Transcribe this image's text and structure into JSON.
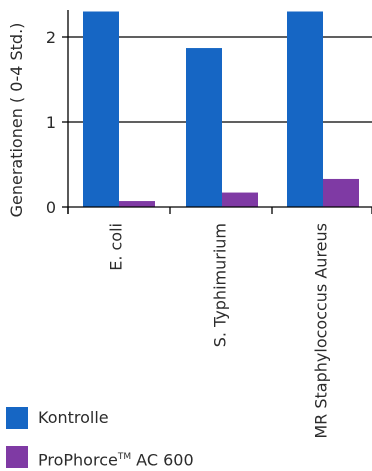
{
  "chart_data": {
    "type": "bar",
    "ylabel": "Generationen ( 0-4 Std.)",
    "yticks": [
      0,
      1,
      2
    ],
    "ylim": [
      -0.05,
      2.3
    ],
    "categories": [
      "E. coli",
      "S. Typhimurium",
      "MR Staphylococcus Aureus"
    ],
    "series": [
      {
        "name": "Kontrolle",
        "color": "#1666c4",
        "values": [
          2.3,
          1.87,
          2.3
        ]
      },
      {
        "name": "ProPhorce™ AC 600",
        "color": "#7f3aa4",
        "values": [
          0.07,
          0.17,
          0.33
        ]
      }
    ],
    "grid": true,
    "legend_position": "bottom-left"
  },
  "legend": {
    "item1": {
      "label": "Kontrolle",
      "color": "#1666c4"
    },
    "item2": {
      "label_main": "ProPhorce",
      "label_sup": "TM",
      "label_rest": " AC 600",
      "color": "#7f3aa4"
    }
  }
}
